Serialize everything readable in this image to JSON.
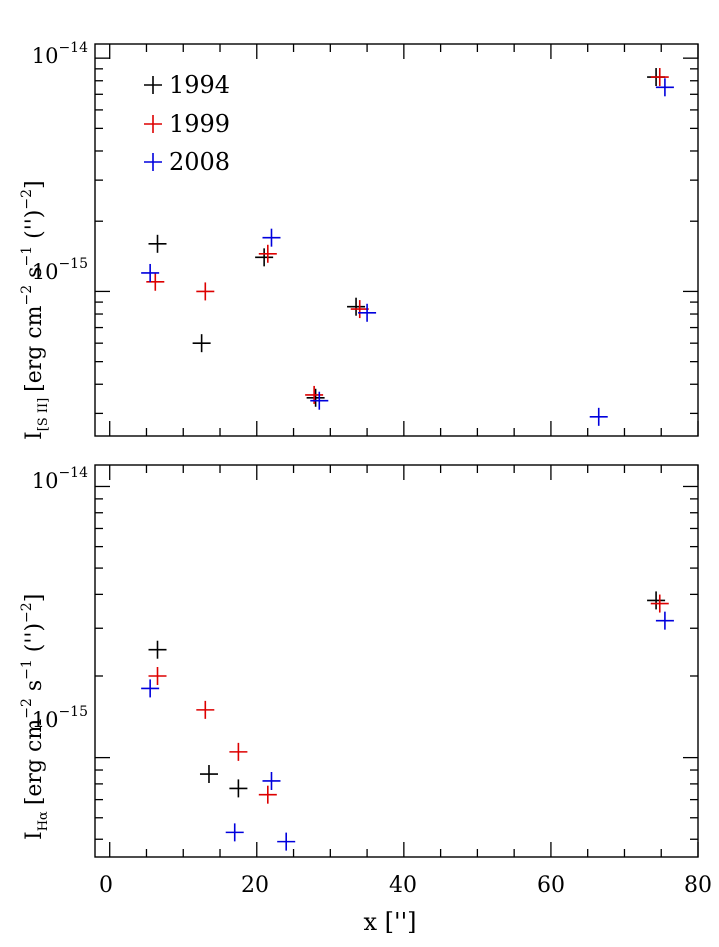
{
  "chart_data": [
    {
      "type": "scatter",
      "panel": "top",
      "ylabel": {
        "main": "I",
        "sub": "[S II]",
        "units": "[erg cm",
        "e1": "−2",
        "s": " s",
        "e2": "−1",
        "p": " ('')",
        "e3": "−2",
        "close": "]"
      },
      "yscale": "log",
      "ylim": [
        2.4e-16,
        1.15e-14
      ],
      "y_major_labels": [
        {
          "base": "10",
          "exp": "−14"
        },
        {
          "base": "10",
          "exp": "−15"
        }
      ],
      "xlim": [
        -2,
        80
      ],
      "legend": {
        "placement": "top-left",
        "entries": [
          "1994",
          "1999",
          "2008"
        ]
      },
      "series": [
        {
          "name": "1994",
          "color": "#000000",
          "points": [
            [
              6.5,
              1.6e-15
            ],
            [
              12.5,
              6e-16
            ],
            [
              21.0,
              1.4e-15
            ],
            [
              28.0,
              3.5e-16
            ],
            [
              33.5,
              8.6e-16
            ],
            [
              74.3,
              8.3e-15
            ]
          ]
        },
        {
          "name": "1999",
          "color": "#dd0000",
          "points": [
            [
              6.2,
              1.1e-15
            ],
            [
              13.0,
              1e-15
            ],
            [
              21.5,
              1.45e-15
            ],
            [
              27.8,
              3.6e-16
            ],
            [
              34.0,
              8.4e-16
            ],
            [
              74.8,
              8.3e-15
            ]
          ]
        },
        {
          "name": "2008",
          "color": "#0000dd",
          "points": [
            [
              5.5,
              1.2e-15
            ],
            [
              22.0,
              1.7e-15
            ],
            [
              28.5,
              3.4e-16
            ],
            [
              35.0,
              8.1e-16
            ],
            [
              66.5,
              2.9e-16
            ],
            [
              75.5,
              7.5e-15
            ]
          ]
        }
      ]
    },
    {
      "type": "scatter",
      "panel": "bottom",
      "ylabel": {
        "main": "I",
        "sub": "Hα",
        "units": "[erg cm",
        "e1": "−2",
        "s": " s",
        "e2": "−1",
        "p": " ('')",
        "e3": "−2",
        "close": "]"
      },
      "yscale": "log",
      "ylim": [
        4.3e-16,
        1.2e-14
      ],
      "y_major_labels": [
        {
          "base": "10",
          "exp": "−14"
        },
        {
          "base": "10",
          "exp": "−15"
        }
      ],
      "xlim": [
        -2,
        80
      ],
      "xlabel": "x ['']",
      "x_tick_labels": [
        "0",
        "20",
        "40",
        "60",
        "80"
      ],
      "series": [
        {
          "name": "1994",
          "color": "#000000",
          "points": [
            [
              6.5,
              2.5e-15
            ],
            [
              13.5,
              8.7e-16
            ],
            [
              17.5,
              7.7e-16
            ],
            [
              74.3,
              3.8e-15
            ]
          ]
        },
        {
          "name": "1999",
          "color": "#dd0000",
          "points": [
            [
              6.5,
              2e-15
            ],
            [
              13.0,
              1.5e-15
            ],
            [
              17.5,
              1.05e-15
            ],
            [
              21.5,
              7.3e-16
            ],
            [
              74.8,
              3.7e-15
            ]
          ]
        },
        {
          "name": "2008",
          "color": "#0000dd",
          "points": [
            [
              5.5,
              1.8e-15
            ],
            [
              17.0,
              5.3e-16
            ],
            [
              22.0,
              8.2e-16
            ],
            [
              24.0,
              4.9e-16
            ],
            [
              75.5,
              3.2e-15
            ]
          ]
        }
      ]
    }
  ]
}
